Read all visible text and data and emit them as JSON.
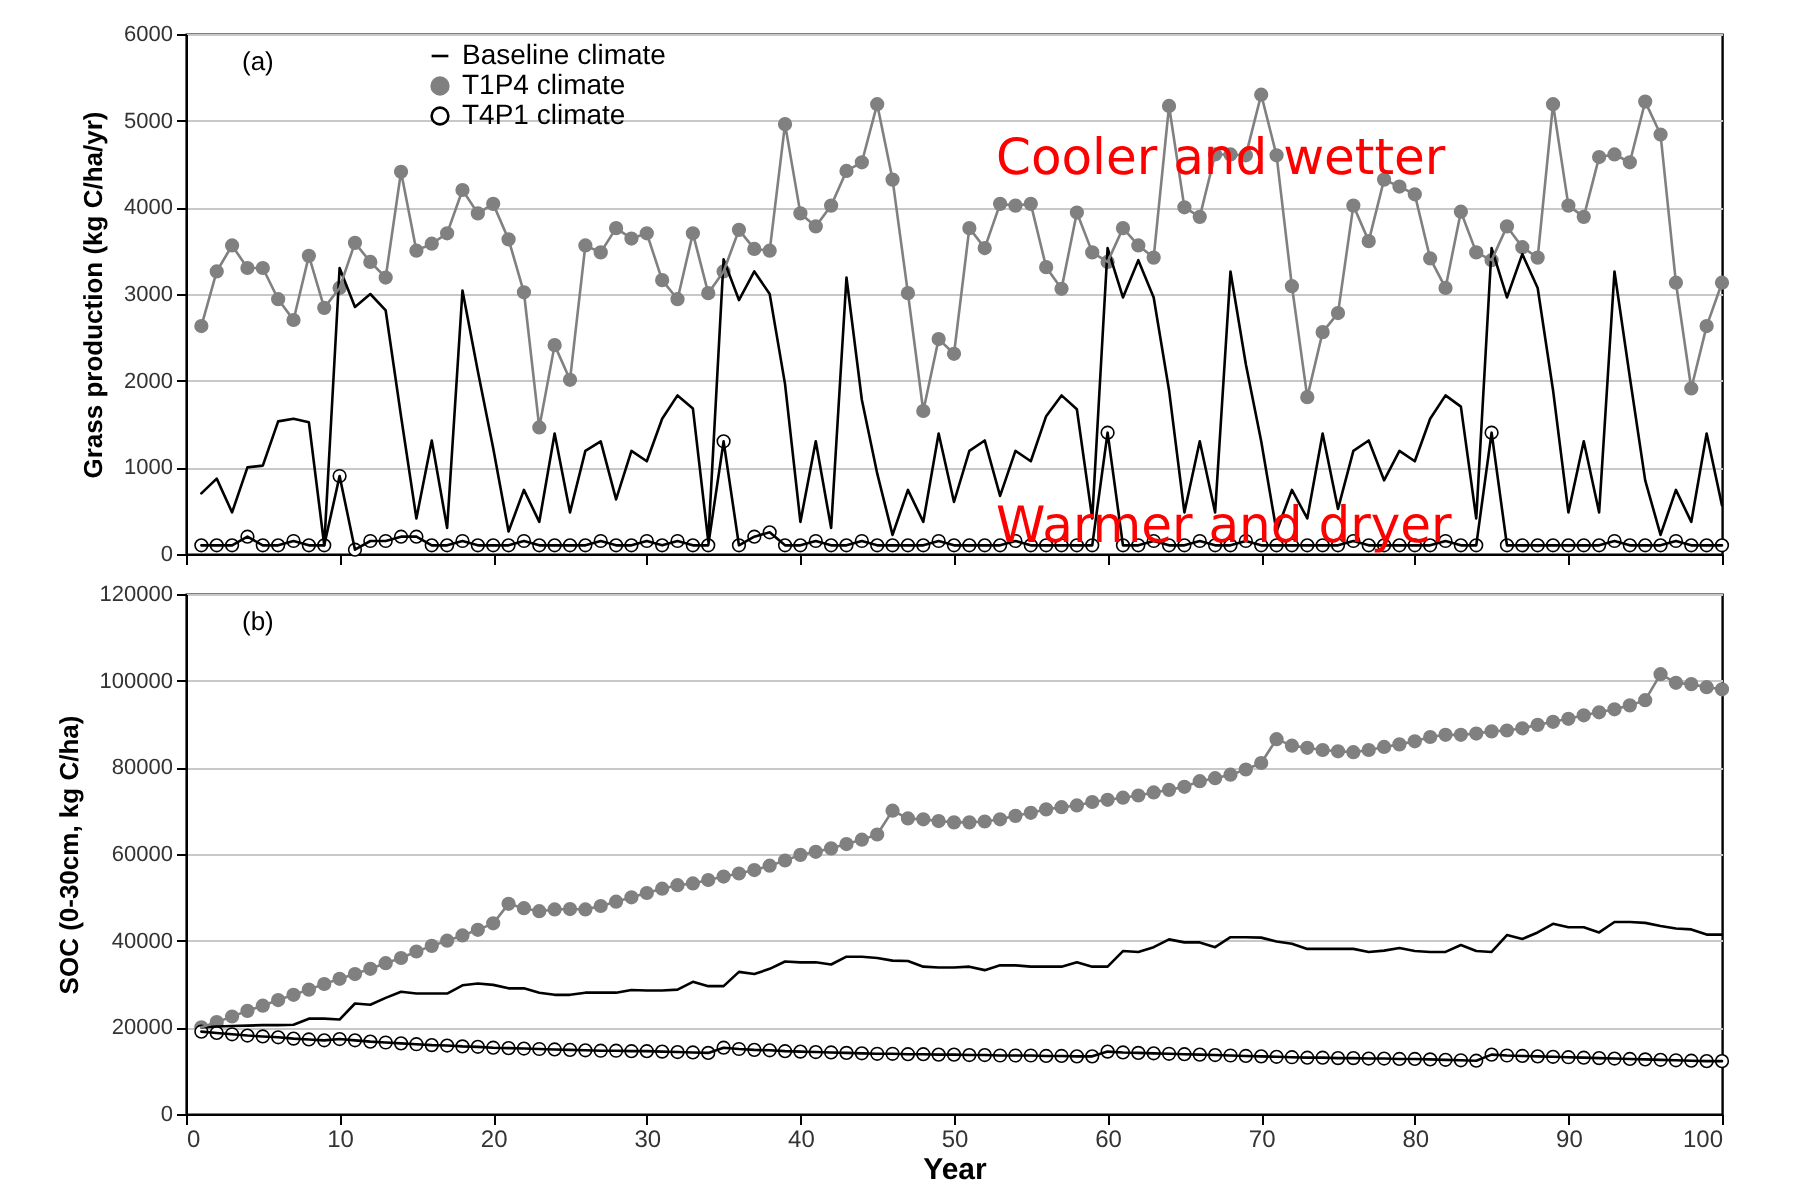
{
  "chart_data": [
    {
      "type": "line",
      "ylabel": "Grass production (kg C/ha/yr)",
      "annotations": [
        "(a)",
        "Cooler and wetter",
        "Warmer and dryer"
      ],
      "x": [
        1,
        2,
        3,
        4,
        5,
        6,
        7,
        8,
        9,
        10,
        11,
        12,
        13,
        14,
        15,
        16,
        17,
        18,
        19,
        20,
        21,
        22,
        23,
        24,
        25,
        26,
        27,
        28,
        29,
        30,
        31,
        32,
        33,
        34,
        35,
        36,
        37,
        38,
        39,
        40,
        41,
        42,
        43,
        44,
        45,
        46,
        47,
        48,
        49,
        50,
        51,
        52,
        53,
        54,
        55,
        56,
        57,
        58,
        59,
        60,
        61,
        62,
        63,
        64,
        65,
        66,
        67,
        68,
        69,
        70,
        71,
        72,
        73,
        74,
        75,
        76,
        77,
        78,
        79,
        80,
        81,
        82,
        83,
        84,
        85,
        86,
        87,
        88,
        89,
        90,
        91,
        92,
        93,
        94,
        95,
        96,
        97,
        98,
        99,
        100
      ],
      "xlim": [
        0,
        100
      ],
      "xticks": [
        0,
        10,
        20,
        30,
        40,
        50,
        60,
        70,
        80,
        90,
        100
      ],
      "ylim": [
        0,
        6000
      ],
      "yticks": [
        0,
        1000,
        2000,
        3000,
        4000,
        5000,
        6000
      ],
      "tick_labels": "y",
      "grid": "y",
      "legend": "top left",
      "series": [
        {
          "name": "Baseline climate",
          "color": "#000000",
          "marker": "none",
          "values": [
            700,
            870,
            480,
            1000,
            1020,
            1530,
            1560,
            1520,
            100,
            3300,
            2850,
            3000,
            2810,
            1590,
            410,
            1310,
            300,
            3040,
            2110,
            1220,
            260,
            740,
            370,
            1390,
            480,
            1190,
            1300,
            630,
            1190,
            1070,
            1560,
            1830,
            1680,
            150,
            3400,
            2930,
            3260,
            3000,
            1960,
            370,
            1300,
            300,
            3190,
            1780,
            930,
            220,
            740,
            370,
            1390,
            600,
            1190,
            1310,
            670,
            1190,
            1070,
            1590,
            1830,
            1670,
            410,
            3530,
            2960,
            3390,
            2960,
            1890,
            480,
            1300,
            480,
            3260,
            2190,
            1300,
            260,
            740,
            410,
            1390,
            520,
            1190,
            1310,
            850,
            1190,
            1070,
            1560,
            1830,
            1700,
            410,
            3530,
            2960,
            3460,
            3070,
            1890,
            480,
            1300,
            480,
            3260,
            2040,
            850,
            220,
            740,
            370,
            1390,
            560
          ]
        },
        {
          "name": "T1P4 climate",
          "color": "#808080",
          "marker": "circle",
          "values": [
            2630,
            3260,
            3560,
            3300,
            3300,
            2940,
            2700,
            3440,
            2840,
            3070,
            3590,
            3370,
            3190,
            4410,
            3500,
            3580,
            3700,
            4200,
            3930,
            4040,
            3630,
            3020,
            1460,
            2410,
            2010,
            3560,
            3480,
            3760,
            3640,
            3700,
            3160,
            2940,
            3700,
            3010,
            3260,
            3740,
            3520,
            3500,
            4960,
            3930,
            3780,
            4020,
            4420,
            4520,
            5190,
            4320,
            3010,
            1650,
            2480,
            2310,
            3760,
            3530,
            4040,
            4020,
            4040,
            3310,
            3060,
            3940,
            3480,
            3370,
            3760,
            3560,
            3420,
            5170,
            4000,
            3890,
            4610,
            4610,
            4600,
            5300,
            4600,
            3090,
            1810,
            2560,
            2780,
            4020,
            3610,
            4320,
            4240,
            4150,
            3410,
            3070,
            3950,
            3480,
            3390,
            3780,
            3540,
            3420,
            5190,
            4020,
            3890,
            4580,
            4610,
            4520,
            5220,
            4840,
            3130,
            1910,
            2630,
            3130
          ]
        },
        {
          "name": "T4P1 climate",
          "color": "#000000",
          "marker": "circle",
          "values": [
            100,
            100,
            100,
            200,
            100,
            100,
            150,
            100,
            100,
            900,
            50,
            150,
            150,
            200,
            200,
            100,
            100,
            150,
            100,
            100,
            100,
            150,
            100,
            100,
            100,
            100,
            150,
            100,
            100,
            150,
            100,
            150,
            100,
            100,
            1300,
            100,
            200,
            250,
            100,
            100,
            150,
            100,
            100,
            150,
            100,
            100,
            100,
            100,
            150,
            100,
            100,
            100,
            100,
            150,
            100,
            100,
            100,
            100,
            100,
            1400,
            100,
            100,
            150,
            100,
            100,
            150,
            100,
            100,
            150,
            100,
            100,
            100,
            100,
            100,
            100,
            150,
            100,
            100,
            100,
            100,
            100,
            150,
            100,
            100,
            1400,
            100,
            100,
            100,
            100,
            100,
            100,
            100,
            150,
            100,
            100,
            100,
            150,
            100,
            100,
            100
          ]
        }
      ]
    },
    {
      "type": "line",
      "xlabel": "Year",
      "ylabel": "SOC (0-30cm, kg C/ha)",
      "annotations": [
        "(b)"
      ],
      "x": [
        1,
        2,
        3,
        4,
        5,
        6,
        7,
        8,
        9,
        10,
        11,
        12,
        13,
        14,
        15,
        16,
        17,
        18,
        19,
        20,
        21,
        22,
        23,
        24,
        25,
        26,
        27,
        28,
        29,
        30,
        31,
        32,
        33,
        34,
        35,
        36,
        37,
        38,
        39,
        40,
        41,
        42,
        43,
        44,
        45,
        46,
        47,
        48,
        49,
        50,
        51,
        52,
        53,
        54,
        55,
        56,
        57,
        58,
        59,
        60,
        61,
        62,
        63,
        64,
        65,
        66,
        67,
        68,
        69,
        70,
        71,
        72,
        73,
        74,
        75,
        76,
        77,
        78,
        79,
        80,
        81,
        82,
        83,
        84,
        85,
        86,
        87,
        88,
        89,
        90,
        91,
        92,
        93,
        94,
        95,
        96,
        97,
        98,
        99,
        100
      ],
      "xlim": [
        0,
        100
      ],
      "xticks": [
        0,
        10,
        20,
        30,
        40,
        50,
        60,
        70,
        80,
        90,
        100
      ],
      "ylim": [
        0,
        120000
      ],
      "yticks": [
        0,
        20000,
        40000,
        60000,
        80000,
        100000,
        120000
      ],
      "grid": "y",
      "legend": "top left",
      "series": [
        {
          "name": "Baseline climate",
          "color": "#000000",
          "marker": "none",
          "values": [
            20000,
            20200,
            20300,
            20400,
            20500,
            20500,
            20600,
            22000,
            22000,
            21800,
            25500,
            25200,
            26800,
            28200,
            27800,
            27800,
            27800,
            29700,
            30100,
            29800,
            29000,
            29000,
            28000,
            27500,
            27500,
            28000,
            28000,
            28000,
            28600,
            28500,
            28500,
            28700,
            30500,
            29500,
            29500,
            32800,
            32300,
            33500,
            35200,
            35000,
            35000,
            34500,
            36300,
            36300,
            36000,
            35400,
            35300,
            34000,
            33800,
            33800,
            34000,
            33200,
            34300,
            34300,
            34000,
            34000,
            34000,
            35000,
            34000,
            34000,
            37600,
            37400,
            38500,
            40300,
            39600,
            39600,
            38500,
            40800,
            40800,
            40700,
            39800,
            39300,
            38100,
            38100,
            38100,
            38100,
            37400,
            37700,
            38300,
            37600,
            37400,
            37400,
            39000,
            37600,
            37400,
            41300,
            40400,
            41900,
            43900,
            43100,
            43100,
            41900,
            44300,
            44300,
            44100,
            43400,
            42800,
            42600,
            41400,
            41400
          ]
        },
        {
          "name": "T1P4 climate",
          "color": "#808080",
          "marker": "circle",
          "values": [
            20000,
            21200,
            22500,
            23800,
            25000,
            26300,
            27500,
            28700,
            30000,
            31200,
            32300,
            33500,
            34800,
            36000,
            37500,
            38800,
            40000,
            41200,
            42500,
            44000,
            48500,
            47500,
            46800,
            47200,
            47300,
            47200,
            48000,
            49000,
            50000,
            51000,
            52000,
            52800,
            53200,
            54000,
            54800,
            55500,
            56300,
            57300,
            58500,
            59800,
            60500,
            61300,
            62300,
            63300,
            64500,
            70000,
            68200,
            68000,
            67600,
            67300,
            67300,
            67500,
            68000,
            68800,
            69500,
            70300,
            70800,
            71200,
            72000,
            72500,
            73000,
            73500,
            74200,
            74800,
            75500,
            76800,
            77500,
            78300,
            79500,
            81000,
            86500,
            85000,
            84500,
            84000,
            83700,
            83500,
            84000,
            84700,
            85300,
            86000,
            87000,
            87500,
            87500,
            87800,
            88300,
            88500,
            89000,
            89800,
            90500,
            91200,
            92000,
            92700,
            93400,
            94300,
            95500,
            101500,
            99500,
            99200,
            98500,
            98000
          ]
        },
        {
          "name": "T4P1 climate",
          "color": "#000000",
          "marker": "circle",
          "values": [
            19000,
            18700,
            18400,
            18100,
            17900,
            17700,
            17400,
            17200,
            17000,
            17300,
            17000,
            16700,
            16500,
            16300,
            16100,
            15900,
            15800,
            15600,
            15500,
            15300,
            15200,
            15100,
            15000,
            14900,
            14800,
            14700,
            14600,
            14600,
            14500,
            14500,
            14400,
            14300,
            14200,
            14100,
            15300,
            15000,
            14800,
            14700,
            14500,
            14400,
            14300,
            14200,
            14100,
            14000,
            13900,
            13900,
            13800,
            13800,
            13700,
            13700,
            13600,
            13600,
            13500,
            13500,
            13500,
            13400,
            13400,
            13300,
            13300,
            14400,
            14200,
            14100,
            14000,
            13900,
            13800,
            13700,
            13600,
            13500,
            13400,
            13300,
            13200,
            13100,
            13000,
            13000,
            12900,
            12900,
            12800,
            12800,
            12700,
            12700,
            12600,
            12500,
            12400,
            12300,
            13700,
            13500,
            13400,
            13300,
            13200,
            13100,
            13000,
            12900,
            12800,
            12700,
            12600,
            12500,
            12400,
            12300,
            12200,
            12200
          ]
        }
      ]
    }
  ]
}
